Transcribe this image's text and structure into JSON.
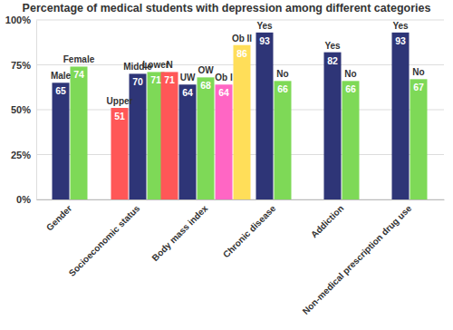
{
  "chart_data": {
    "type": "bar",
    "title": "Percentage of medical students with depression among different categories",
    "categories": [
      "Gender",
      "Socioeconomic status",
      "Body mass index",
      "Chronic disease",
      "Addiction",
      "Non-medical prescription drug use"
    ],
    "groups": [
      {
        "labels": [
          "Male",
          "Female"
        ],
        "values": [
          65,
          74
        ],
        "colors": [
          "#2e3577",
          "#7ed957"
        ]
      },
      {
        "labels": [
          "Upper",
          "Middle",
          "Lower"
        ],
        "values": [
          51,
          70,
          71
        ],
        "colors": [
          "#ff5757",
          "#2e3577",
          "#7ed957"
        ]
      },
      {
        "labels": [
          "N",
          "UW",
          "OW",
          "Ob I",
          "Ob II"
        ],
        "values": [
          71,
          64,
          68,
          64,
          86
        ],
        "colors": [
          "#ff5757",
          "#2e3577",
          "#7ed957",
          "#ff66c4",
          "#ffde59"
        ]
      },
      {
        "labels": [
          "Yes",
          "No"
        ],
        "values": [
          93,
          66
        ],
        "colors": [
          "#2e3577",
          "#7ed957"
        ]
      },
      {
        "labels": [
          "Yes",
          "No"
        ],
        "values": [
          82,
          66
        ],
        "colors": [
          "#2e3577",
          "#7ed957"
        ]
      },
      {
        "labels": [
          "Yes",
          "No"
        ],
        "values": [
          93,
          67
        ],
        "colors": [
          "#2e3577",
          "#7ed957"
        ]
      }
    ],
    "ylim": [
      0,
      100
    ],
    "yticks": [
      {
        "value": 0,
        "label": "0%"
      },
      {
        "value": 25,
        "label": "25%"
      },
      {
        "value": 50,
        "label": "50%"
      },
      {
        "value": 75,
        "label": "75%"
      },
      {
        "value": 100,
        "label": "100%"
      }
    ],
    "grid": true,
    "data_labels": true
  }
}
